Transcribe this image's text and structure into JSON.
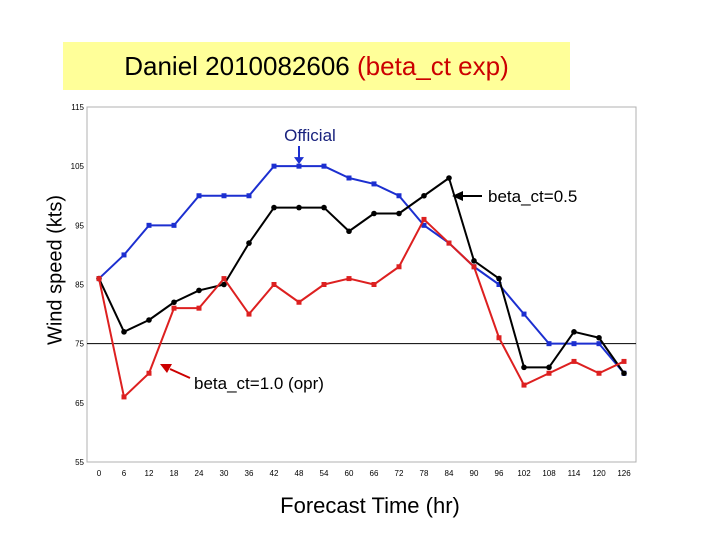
{
  "chart_data": {
    "type": "line",
    "title": "Daniel 2010082606",
    "title_suffix": "(beta_ct exp)",
    "xlabel": "Forecast Time (hr)",
    "ylabel": "Wind speed (kts)",
    "x": [
      0,
      6,
      12,
      18,
      24,
      30,
      36,
      42,
      48,
      54,
      60,
      66,
      72,
      78,
      84,
      90,
      96,
      102,
      108,
      114,
      120,
      126
    ],
    "ylim": [
      55,
      115
    ],
    "yticks": [
      55,
      65,
      75,
      85,
      95,
      105,
      115
    ],
    "ytick_labels": [
      "55",
      "65",
      "75",
      "85",
      "95",
      "105",
      "115"
    ],
    "reference_line": 75,
    "grid": false,
    "series": [
      {
        "color": "#1c2fd0",
        "values": [
          86,
          90,
          95,
          95,
          100,
          100,
          100,
          105,
          105,
          105,
          103,
          102,
          100,
          95,
          92,
          88,
          85,
          80,
          75,
          75,
          75,
          70
        ]
      },
      {
        "color": "#000000",
        "values": [
          86,
          77,
          79,
          82,
          84,
          85,
          92,
          98,
          98,
          98,
          94,
          97,
          97,
          100,
          103,
          89,
          86,
          71,
          71,
          77,
          76,
          70
        ]
      },
      {
        "color": "#dd2020",
        "values": [
          86,
          66,
          70,
          81,
          81,
          86,
          80,
          85,
          82,
          85,
          86,
          85,
          88,
          96,
          92,
          88,
          76,
          68,
          70,
          72,
          70,
          72
        ]
      }
    ],
    "annotations": [
      {
        "text": "Official",
        "color": "#1a237e"
      },
      {
        "text": "beta_ct=0.5",
        "color": "#000000"
      },
      {
        "text": "beta_ct=1.0 (opr)",
        "color": "#cc0000"
      }
    ]
  }
}
